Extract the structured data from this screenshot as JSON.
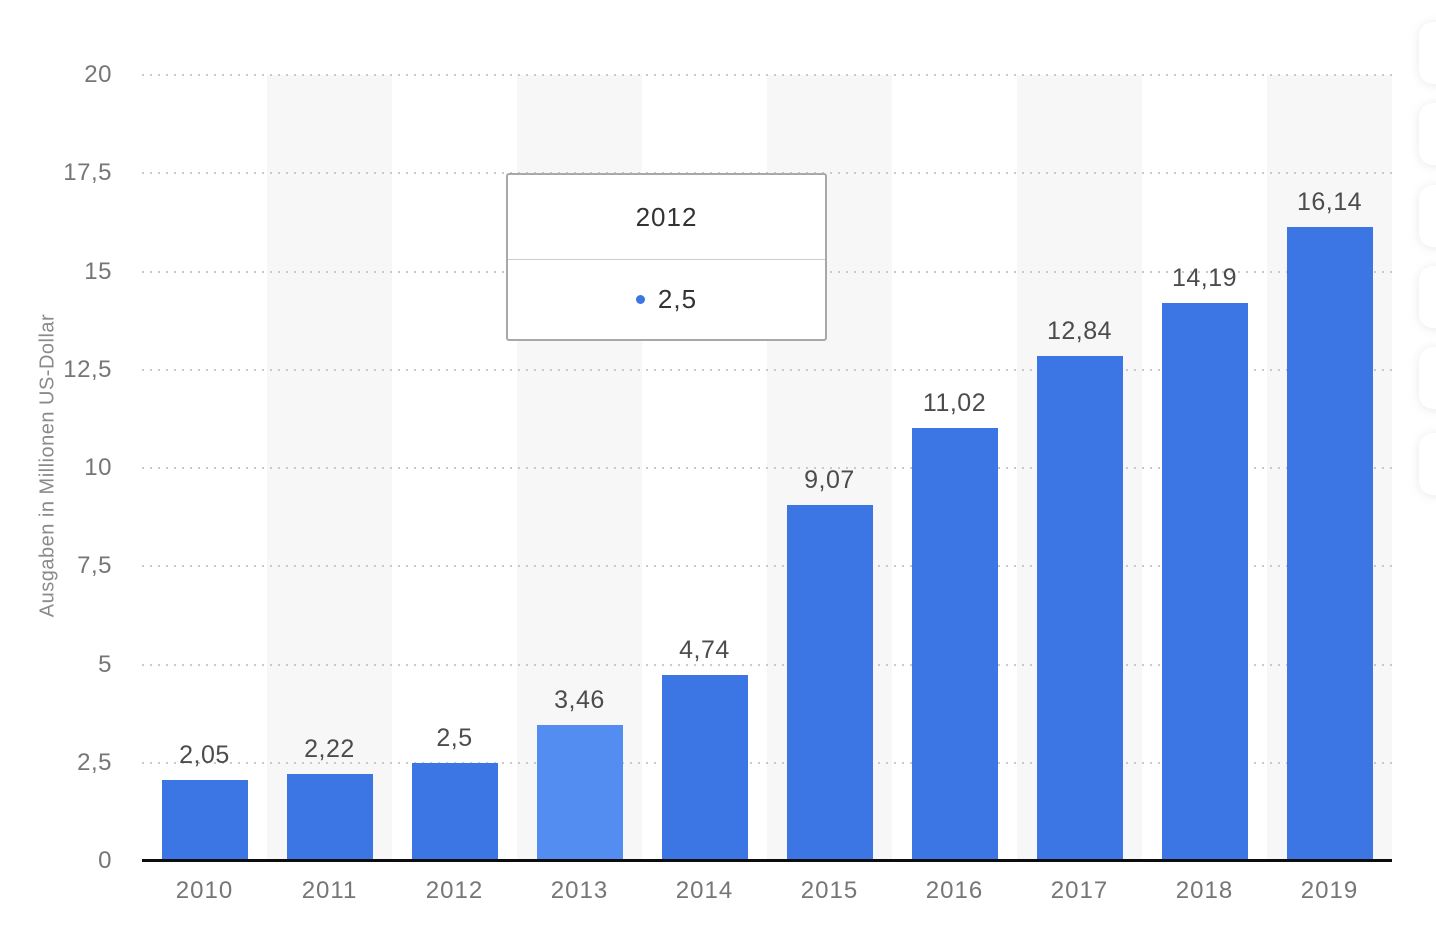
{
  "page_bg": "#ffffff",
  "chart_data": {
    "type": "bar",
    "title": "",
    "categories": [
      "2010",
      "2011",
      "2012",
      "2013",
      "2014",
      "2015",
      "2016",
      "2017",
      "2018",
      "2019"
    ],
    "values": [
      2.05,
      2.22,
      2.5,
      3.46,
      4.74,
      9.07,
      11.02,
      12.84,
      14.19,
      16.14
    ],
    "value_labels": [
      "2,05",
      "2,22",
      "2,5",
      "3,46",
      "4,74",
      "9,07",
      "11,02",
      "12,84",
      "14,19",
      "16,14"
    ],
    "xlabel": "",
    "ylabel": "Ausgaben in Millionen US-Dollar",
    "ylim": [
      0,
      20
    ],
    "ytick_labels": [
      "20",
      "17,5",
      "15",
      "12,5",
      "10",
      "7,5",
      "5",
      "2,5",
      "0"
    ],
    "grid": "dotted horizontal gridlines",
    "legend_position": "none",
    "highlighted_index": 3,
    "striped_columns": [
      1,
      3,
      5,
      7,
      9
    ],
    "colors": {
      "bar": "#3b76e4",
      "bar_highlighted": "#538df1",
      "stripe": "#f7f7f7",
      "gridline": "#c9c9c9",
      "axis_line": "#0d0d0d",
      "tick_text": "#767676",
      "value_text": "#4c4c4c",
      "tooltip_border": "#a8a8a8"
    }
  },
  "tooltip": {
    "title": "2012",
    "marker": "dot-icon",
    "value": "2,5"
  },
  "side_rail": {
    "button_count": 6
  }
}
